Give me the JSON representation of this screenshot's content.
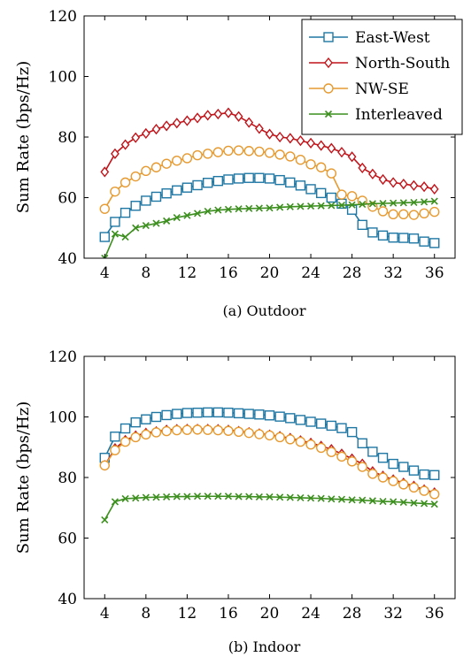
{
  "chart_data": [
    {
      "type": "line",
      "caption": "(a) Outdoor",
      "ylabel": "Sum Rate (bps/Hz)",
      "xlabel": "",
      "xlim": [
        2,
        38
      ],
      "ylim": [
        40,
        120
      ],
      "xticks": [
        4,
        8,
        12,
        16,
        20,
        24,
        28,
        32,
        36
      ],
      "yticks": [
        40,
        60,
        80,
        100,
        120
      ],
      "legend_position": "top-right",
      "x": [
        4,
        5,
        6,
        7,
        8,
        9,
        10,
        11,
        12,
        13,
        14,
        15,
        16,
        17,
        18,
        19,
        20,
        21,
        22,
        23,
        24,
        25,
        26,
        27,
        28,
        29,
        30,
        31,
        32,
        33,
        34,
        35,
        36
      ],
      "series": [
        {
          "name": "East-West",
          "color": "#1f77a4",
          "marker": "square",
          "values": [
            47,
            52,
            55,
            57.3,
            59,
            60.3,
            61.4,
            62.4,
            63.3,
            64.1,
            64.9,
            65.5,
            66,
            66.3,
            66.5,
            66.5,
            66.3,
            65.8,
            65,
            64,
            62.8,
            61.5,
            60,
            58,
            56,
            51,
            48.5,
            47.5,
            46.8,
            46.7,
            46.5,
            45.5,
            45
          ]
        },
        {
          "name": "North-South",
          "color": "#c0141a",
          "marker": "diamond",
          "values": [
            68.5,
            74.5,
            77.5,
            79.8,
            81.2,
            82.6,
            83.7,
            84.6,
            85.4,
            86.3,
            87.2,
            87.6,
            88,
            86.8,
            84.8,
            82.8,
            81,
            80,
            79.6,
            78.8,
            78,
            77.2,
            76.3,
            75,
            73.5,
            69.8,
            67.8,
            66,
            65,
            64.5,
            64,
            63.6,
            62.8
          ]
        },
        {
          "name": "NW-SE",
          "color": "#e69a30",
          "marker": "circle",
          "values": [
            56.3,
            62,
            65,
            67,
            68.8,
            70,
            71.2,
            72.2,
            73,
            74,
            74.5,
            75,
            75.5,
            75.6,
            75.4,
            75.2,
            74.8,
            74.2,
            73.6,
            72.5,
            71,
            70,
            68,
            61,
            60.5,
            59,
            57,
            55.5,
            54.5,
            54.5,
            54.3,
            54.8,
            55.3
          ]
        },
        {
          "name": "Interleaved",
          "color": "#3c8f1e",
          "marker": "cross",
          "values": [
            40,
            48,
            47,
            50,
            50.8,
            51.5,
            52.3,
            53.4,
            54.1,
            54.8,
            55.5,
            55.9,
            56.1,
            56.3,
            56.4,
            56.5,
            56.6,
            56.8,
            57,
            57.1,
            57.2,
            57.3,
            57.4,
            57.5,
            57.6,
            57.8,
            58,
            58.1,
            58.2,
            58.3,
            58.4,
            58.6,
            58.8
          ]
        }
      ]
    },
    {
      "type": "line",
      "caption": "(b) Indoor",
      "ylabel": "Sum Rate (bps/Hz)",
      "xlabel": "",
      "xlim": [
        2,
        38
      ],
      "ylim": [
        40,
        120
      ],
      "xticks": [
        4,
        8,
        12,
        16,
        20,
        24,
        28,
        32,
        36
      ],
      "yticks": [
        40,
        60,
        80,
        100,
        120
      ],
      "x": [
        4,
        5,
        6,
        7,
        8,
        9,
        10,
        11,
        12,
        13,
        14,
        15,
        16,
        17,
        18,
        19,
        20,
        21,
        22,
        23,
        24,
        25,
        26,
        27,
        28,
        29,
        30,
        31,
        32,
        33,
        34,
        35,
        36
      ],
      "series": [
        {
          "name": "East-West",
          "color": "#1f77a4",
          "marker": "square",
          "values": [
            86.5,
            93.5,
            96.2,
            98.2,
            99.2,
            100,
            100.6,
            101,
            101.3,
            101.4,
            101.5,
            101.5,
            101.4,
            101.2,
            101,
            100.8,
            100.5,
            100.1,
            99.6,
            99,
            98.4,
            97.8,
            97.1,
            96.3,
            95,
            91.3,
            88.5,
            86.5,
            84.5,
            83.5,
            82.3,
            81,
            80.8
          ]
        },
        {
          "name": "North-South",
          "color": "#c0141a",
          "marker": "diamond",
          "values": [
            84,
            89.6,
            92.3,
            93.8,
            94.7,
            95.2,
            95.7,
            95.9,
            96,
            96,
            96,
            95.9,
            95.7,
            95.3,
            94.9,
            94.5,
            94.1,
            93.6,
            93,
            92.2,
            91.4,
            90.4,
            89.3,
            87.8,
            86.2,
            84.5,
            82,
            80.5,
            79.3,
            78.2,
            77.2,
            76,
            75
          ]
        },
        {
          "name": "NW-SE",
          "color": "#e69a30",
          "marker": "circle",
          "values": [
            84,
            89,
            91.8,
            93.3,
            94.2,
            94.9,
            95.3,
            95.6,
            95.7,
            95.8,
            95.7,
            95.6,
            95.4,
            95.1,
            94.7,
            94.3,
            93.9,
            93.3,
            92.6,
            91.8,
            90.9,
            89.8,
            88.4,
            86.9,
            85.3,
            83.5,
            81.2,
            80,
            78.8,
            77.7,
            76.7,
            75.6,
            74.5
          ]
        },
        {
          "name": "Interleaved",
          "color": "#3c8f1e",
          "marker": "cross",
          "values": [
            66,
            72,
            73,
            73.2,
            73.4,
            73.5,
            73.6,
            73.7,
            73.7,
            73.8,
            73.8,
            73.8,
            73.8,
            73.7,
            73.7,
            73.6,
            73.6,
            73.5,
            73.4,
            73.3,
            73.2,
            73.1,
            72.9,
            72.8,
            72.6,
            72.5,
            72.3,
            72.1,
            72,
            71.8,
            71.6,
            71.4,
            71.2
          ]
        }
      ]
    }
  ]
}
